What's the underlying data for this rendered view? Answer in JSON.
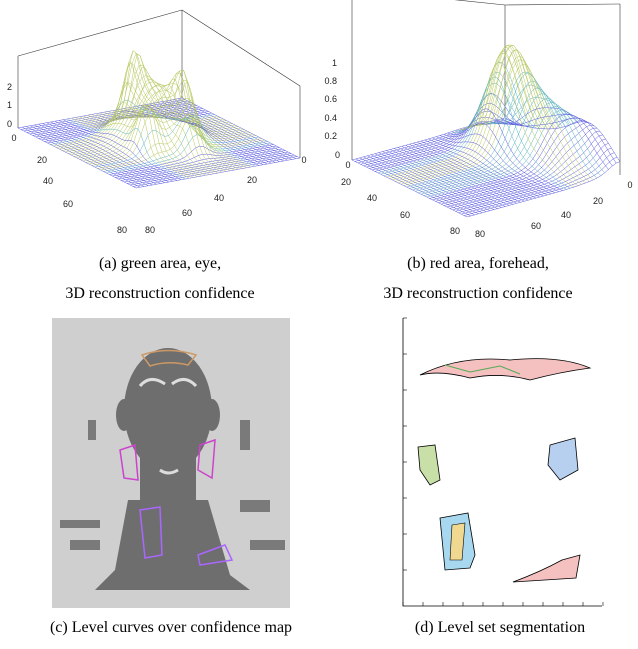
{
  "figures": [
    {
      "caption": [
        "(a) green area, eye,",
        "3D reconstruction confidence"
      ],
      "z_ticks": [
        "2",
        "1",
        "0"
      ],
      "left_ticks": [
        "0",
        "20",
        "40",
        "60",
        "80"
      ],
      "right_ticks": [
        "80",
        "60",
        "40",
        "20",
        "0"
      ]
    },
    {
      "caption": [
        "(b) red area, forehead,",
        "3D reconstruction confidence"
      ],
      "z_ticks": [
        "1",
        "0.8",
        "0.6",
        "0.4",
        "0.2",
        "0"
      ],
      "left_ticks": [
        "0",
        "20",
        "40",
        "60",
        "80"
      ],
      "right_ticks": [
        "80",
        "60",
        "40",
        "20",
        "0"
      ]
    },
    {
      "caption": [
        "(c) Level curves over confidence map"
      ]
    },
    {
      "caption": [
        "(d) Level set segmentation"
      ]
    }
  ]
}
